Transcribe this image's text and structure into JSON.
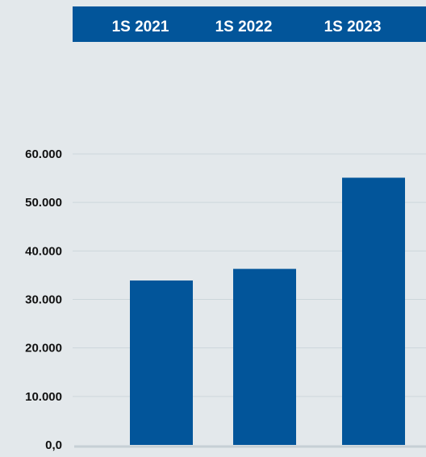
{
  "colors": {
    "background": "#e3e8eb",
    "bar": "#02559a",
    "header_band": "#02559a",
    "header_text": "#ffffff",
    "gridline": "#cdd6db",
    "baseline": "#c6cfd5",
    "tick_text": "#111111"
  },
  "chart_data": {
    "type": "bar",
    "title": "",
    "xlabel": "",
    "ylabel": "",
    "categories": [
      "1S 2021",
      "1S 2022",
      "1S 2023"
    ],
    "values": [
      33900,
      36300,
      55100
    ],
    "ylim": [
      0,
      60000
    ],
    "y_ticks": [
      0,
      10000,
      20000,
      30000,
      40000,
      50000,
      60000
    ],
    "y_tick_labels": [
      "0,0",
      "10.000",
      "20.000",
      "30.000",
      "40.000",
      "50.000",
      "60.000"
    ],
    "grid": true,
    "legend": "none",
    "category_labels_position": "top-band"
  }
}
